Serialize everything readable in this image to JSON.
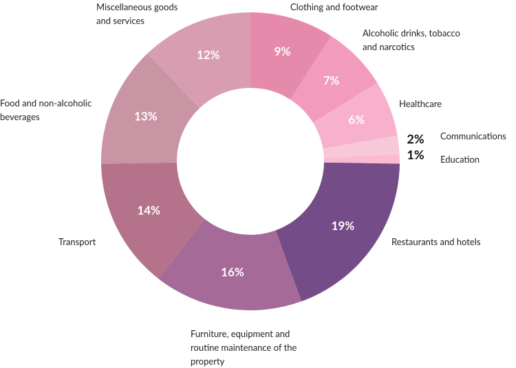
{
  "chart_data": {
    "type": "donut",
    "categories": [
      "Clothing and footwear",
      "Alcoholic drinks, tobacco and narcotics",
      "Healthcare",
      "Communications",
      "Education",
      "Restaurants and hotels",
      "Furniture, equipment and routine maintenance of the property",
      "Transport",
      "Food and non-alcoholic beverages",
      "Miscellaneous goods and services"
    ],
    "values": [
      9,
      7,
      6,
      2,
      1,
      19,
      16,
      14,
      13,
      12
    ],
    "value_labels": [
      "9%",
      "7%",
      "6%",
      "2%",
      "1%",
      "19%",
      "16%",
      "14%",
      "13%",
      "12%"
    ],
    "colors": [
      "#e68aab",
      "#f29bbd",
      "#f8b1cc",
      "#f7c8d7",
      "#fbb9d3",
      "#744c87",
      "#a56a97",
      "#b4738a",
      "#c994a3",
      "#d89db1"
    ]
  }
}
